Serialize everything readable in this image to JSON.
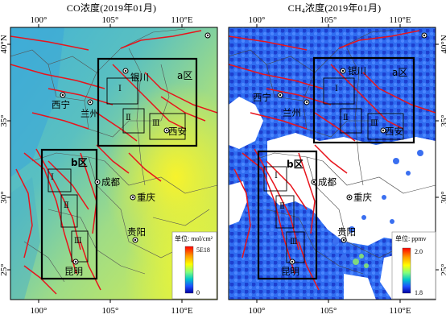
{
  "panels": [
    {
      "id": "co",
      "title_pre": "CO浓度(2019年01月)",
      "title_sub": "",
      "title_post": "",
      "x_ticks": [
        "100°",
        "105°",
        "110°E"
      ],
      "y_ticks": [
        "40°N",
        "35°",
        "30°",
        "25°"
      ],
      "legend": {
        "unit": "单位: mol/cm²",
        "max": "5E18",
        "min": "0",
        "colors": [
          "#ff0000",
          "#ff8c00",
          "#ffff00",
          "#7fff7f",
          "#00c8c8",
          "#1e50ff",
          "#0000a0"
        ]
      },
      "cities": [
        "银川",
        "西宁",
        "兰州",
        "西安",
        "成都",
        "重庆",
        "贵阳",
        "昆明"
      ],
      "regions": {
        "a": "a区",
        "b": "b区"
      },
      "sub_boxes": [
        "Ⅰ",
        "Ⅱ",
        "Ⅲ",
        "Ⅰ",
        "Ⅱ",
        "Ⅲ"
      ]
    },
    {
      "id": "ch4",
      "title_pre": "CH",
      "title_sub": "4",
      "title_post": "浓度(2019年01月)",
      "x_ticks": [
        "100°",
        "105°",
        "110°E"
      ],
      "y_ticks": [
        "40°N",
        "35°",
        "30°",
        "25°"
      ],
      "legend": {
        "unit": "单位: ppmv",
        "max": "2.0",
        "min": "1.8",
        "colors": [
          "#ff0000",
          "#ff8c00",
          "#ffff00",
          "#7fff7f",
          "#00c8c8",
          "#1e50ff",
          "#0000a0"
        ]
      },
      "cities": [
        "银川",
        "西宁",
        "兰州",
        "西安",
        "成都",
        "重庆",
        "贵阳",
        "昆明"
      ],
      "regions": {
        "a": "a区",
        "b": "b区"
      },
      "sub_boxes": [
        "Ⅰ",
        "Ⅱ",
        "Ⅲ",
        "Ⅰ",
        "Ⅱ",
        "Ⅲ"
      ]
    }
  ]
}
